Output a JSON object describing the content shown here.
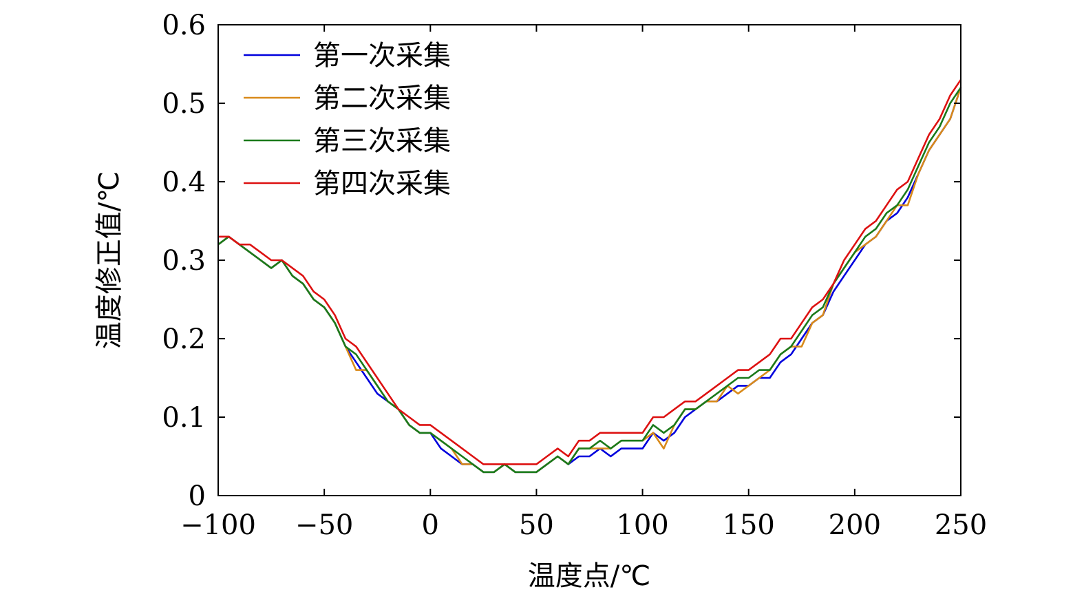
{
  "chart_data": {
    "type": "line",
    "xlabel": "温度点/℃",
    "ylabel": "温度修正值/℃",
    "xlim": [
      -100,
      250
    ],
    "ylim": [
      0,
      0.6
    ],
    "xticks": [
      -100,
      -50,
      0,
      50,
      100,
      150,
      200,
      250
    ],
    "xtick_labels": [
      "−100",
      "−50",
      "0",
      "50",
      "100",
      "150",
      "200",
      "250"
    ],
    "yticks": [
      0,
      0.1,
      0.2,
      0.3,
      0.4,
      0.5,
      0.6
    ],
    "ytick_labels": [
      "0",
      "0.1",
      "0.2",
      "0.3",
      "0.4",
      "0.5",
      "0.6"
    ],
    "grid": false,
    "legend_position": "top-left",
    "x": [
      -100,
      -95,
      -90,
      -85,
      -80,
      -75,
      -70,
      -65,
      -60,
      -55,
      -50,
      -45,
      -40,
      -35,
      -30,
      -25,
      -20,
      -15,
      -10,
      -5,
      0,
      5,
      10,
      15,
      20,
      25,
      30,
      35,
      40,
      45,
      50,
      55,
      60,
      65,
      70,
      75,
      80,
      85,
      90,
      95,
      100,
      105,
      110,
      115,
      120,
      125,
      130,
      135,
      140,
      145,
      150,
      155,
      160,
      165,
      170,
      175,
      180,
      185,
      190,
      195,
      200,
      205,
      210,
      215,
      220,
      225,
      230,
      235,
      240,
      245,
      250
    ],
    "series": [
      {
        "name": "第一次采集",
        "color": "#0000dd",
        "values": [
          0.32,
          0.33,
          0.32,
          0.31,
          0.3,
          0.29,
          0.3,
          0.28,
          0.27,
          0.25,
          0.24,
          0.22,
          0.19,
          0.17,
          0.15,
          0.13,
          0.12,
          0.11,
          0.09,
          0.08,
          0.08,
          0.06,
          0.05,
          0.04,
          0.04,
          0.03,
          0.03,
          0.04,
          0.03,
          0.03,
          0.03,
          0.04,
          0.05,
          0.04,
          0.05,
          0.05,
          0.06,
          0.05,
          0.06,
          0.06,
          0.06,
          0.08,
          0.07,
          0.08,
          0.1,
          0.11,
          0.12,
          0.12,
          0.13,
          0.14,
          0.14,
          0.15,
          0.15,
          0.17,
          0.18,
          0.2,
          0.22,
          0.23,
          0.26,
          0.28,
          0.3,
          0.32,
          0.33,
          0.35,
          0.36,
          0.38,
          0.41,
          0.44,
          0.46,
          0.48,
          0.52
        ]
      },
      {
        "name": "第二次采集",
        "color": "#d98a1a",
        "values": [
          0.32,
          0.33,
          0.32,
          0.31,
          0.3,
          0.29,
          0.3,
          0.28,
          0.27,
          0.25,
          0.24,
          0.22,
          0.19,
          0.16,
          0.16,
          0.14,
          0.12,
          0.11,
          0.09,
          0.08,
          0.08,
          0.07,
          0.06,
          0.04,
          0.04,
          0.03,
          0.03,
          0.04,
          0.03,
          0.03,
          0.03,
          0.04,
          0.05,
          0.04,
          0.06,
          0.06,
          0.06,
          0.06,
          0.07,
          0.07,
          0.07,
          0.08,
          0.06,
          0.09,
          0.11,
          0.11,
          0.12,
          0.12,
          0.14,
          0.13,
          0.14,
          0.15,
          0.16,
          0.18,
          0.19,
          0.19,
          0.22,
          0.23,
          0.27,
          0.29,
          0.31,
          0.32,
          0.33,
          0.35,
          0.37,
          0.37,
          0.41,
          0.44,
          0.46,
          0.48,
          0.52
        ]
      },
      {
        "name": "第三次采集",
        "color": "#1a7a1a",
        "values": [
          0.32,
          0.33,
          0.32,
          0.31,
          0.3,
          0.29,
          0.3,
          0.28,
          0.27,
          0.25,
          0.24,
          0.22,
          0.19,
          0.18,
          0.16,
          0.14,
          0.12,
          0.11,
          0.09,
          0.08,
          0.08,
          0.07,
          0.06,
          0.05,
          0.04,
          0.03,
          0.03,
          0.04,
          0.03,
          0.03,
          0.03,
          0.04,
          0.05,
          0.04,
          0.06,
          0.06,
          0.07,
          0.06,
          0.07,
          0.07,
          0.07,
          0.09,
          0.08,
          0.09,
          0.11,
          0.11,
          0.12,
          0.13,
          0.14,
          0.15,
          0.15,
          0.16,
          0.16,
          0.18,
          0.19,
          0.21,
          0.23,
          0.24,
          0.27,
          0.29,
          0.31,
          0.33,
          0.34,
          0.36,
          0.37,
          0.39,
          0.42,
          0.45,
          0.47,
          0.5,
          0.52
        ]
      },
      {
        "name": "第四次采集",
        "color": "#dd1111",
        "values": [
          0.33,
          0.33,
          0.32,
          0.32,
          0.31,
          0.3,
          0.3,
          0.29,
          0.28,
          0.26,
          0.25,
          0.23,
          0.2,
          0.19,
          0.17,
          0.15,
          0.13,
          0.11,
          0.1,
          0.09,
          0.09,
          0.08,
          0.07,
          0.06,
          0.05,
          0.04,
          0.04,
          0.04,
          0.04,
          0.04,
          0.04,
          0.05,
          0.06,
          0.05,
          0.07,
          0.07,
          0.08,
          0.08,
          0.08,
          0.08,
          0.08,
          0.1,
          0.1,
          0.11,
          0.12,
          0.12,
          0.13,
          0.14,
          0.15,
          0.16,
          0.16,
          0.17,
          0.18,
          0.2,
          0.2,
          0.22,
          0.24,
          0.25,
          0.27,
          0.3,
          0.32,
          0.34,
          0.35,
          0.37,
          0.39,
          0.4,
          0.43,
          0.46,
          0.48,
          0.51,
          0.53
        ]
      }
    ]
  }
}
